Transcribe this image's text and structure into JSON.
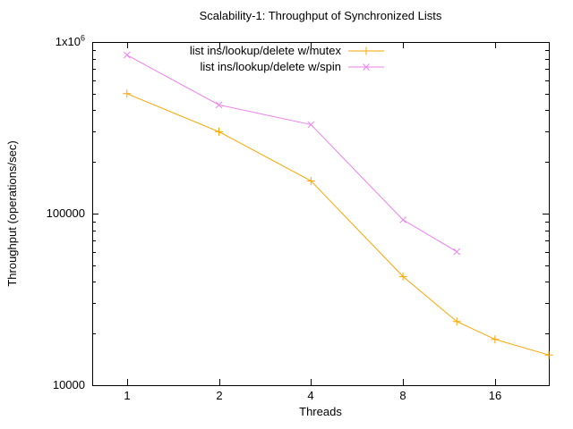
{
  "chart_data": {
    "type": "line",
    "title": "Scalability-1: Throughput of Synchronized Lists",
    "xlabel": "Threads",
    "ylabel": "Throughput (operations/sec)",
    "x_scale": "log2",
    "y_scale": "log10",
    "x_range": [
      0.77,
      24
    ],
    "y_range": [
      10000,
      1000000
    ],
    "x_ticks": {
      "values": [
        1,
        2,
        4,
        8,
        16
      ],
      "labels": [
        "1",
        "2",
        "4",
        "8",
        "16"
      ]
    },
    "y_ticks": {
      "values": [
        10000,
        100000,
        1000000
      ],
      "labels": [
        "10000",
        "100000",
        "1x10^6"
      ]
    },
    "grid": false,
    "legend_position": "top-center-inside",
    "background_color": "#ffffff",
    "axis_color": "#000000",
    "series": [
      {
        "name": "list ins/lookup/delete w/mutex",
        "color": "#ffa500",
        "marker": "plus",
        "x": [
          1,
          2,
          4,
          8,
          12,
          16,
          24
        ],
        "y": [
          500000,
          300000,
          155000,
          43000,
          23500,
          18500,
          15000
        ]
      },
      {
        "name": "list ins/lookup/delete w/spin",
        "color": "#ee82ee",
        "marker": "cross",
        "x": [
          1,
          2,
          4,
          8,
          12
        ],
        "y": [
          840000,
          430000,
          330000,
          92000,
          60000
        ]
      }
    ]
  }
}
